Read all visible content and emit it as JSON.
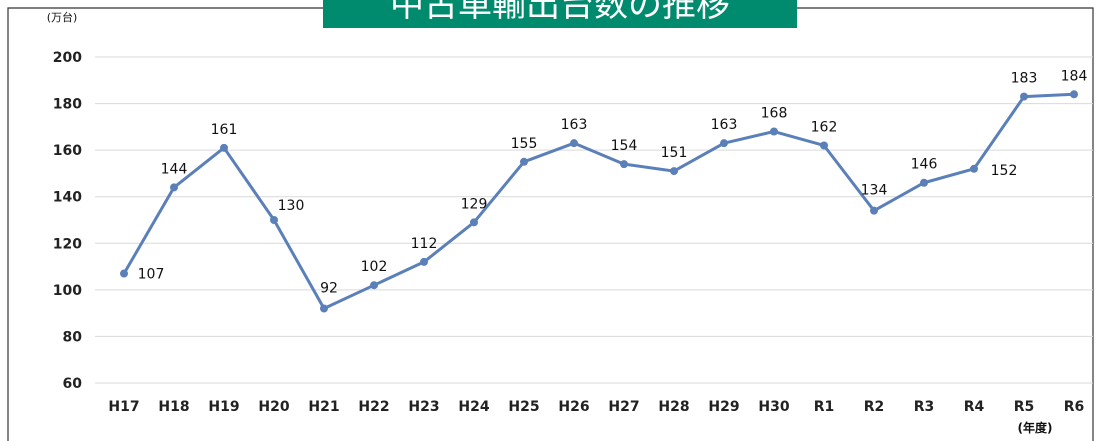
{
  "chart_data": {
    "type": "line",
    "title": "中古車輸出台数の推移",
    "y_unit": "(万台)",
    "x_unit": "(年度)",
    "categories": [
      "H17",
      "H18",
      "H19",
      "H20",
      "H21",
      "H22",
      "H23",
      "H24",
      "H25",
      "H26",
      "H27",
      "H28",
      "H29",
      "H30",
      "R1",
      "R2",
      "R3",
      "R4",
      "R5",
      "R6"
    ],
    "series": [
      {
        "name": "中古車輸出台数",
        "color": "#5b80b9",
        "values": [
          107,
          144,
          161,
          130,
          92,
          102,
          112,
          129,
          155,
          163,
          154,
          151,
          163,
          168,
          162,
          134,
          146,
          152,
          183,
          184
        ]
      }
    ],
    "ylim": [
      60,
      200
    ],
    "yticks": [
      60,
      80,
      100,
      120,
      140,
      160,
      180,
      200
    ],
    "grid": true
  }
}
